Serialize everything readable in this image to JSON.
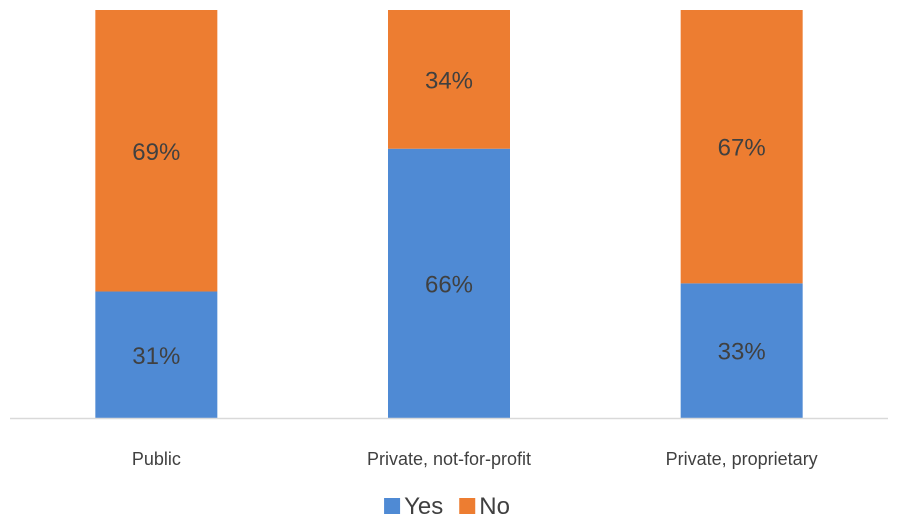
{
  "chart_data": {
    "type": "bar",
    "stacked": true,
    "categories": [
      "Public",
      "Private, not-for-profit",
      "Private, proprietary"
    ],
    "series": [
      {
        "name": "Yes",
        "color": "#4f8ad4",
        "values": [
          31,
          66,
          33
        ],
        "labels": [
          "31%",
          "66%",
          "33%"
        ]
      },
      {
        "name": "No",
        "color": "#ed7d31",
        "values": [
          69,
          34,
          67
        ],
        "labels": [
          "69%",
          "34%",
          "67%"
        ]
      }
    ],
    "ylim": [
      0,
      100
    ],
    "grid": false,
    "legend_position": "bottom",
    "axis_color": "#d9d9d9",
    "label_color": "#404040"
  }
}
